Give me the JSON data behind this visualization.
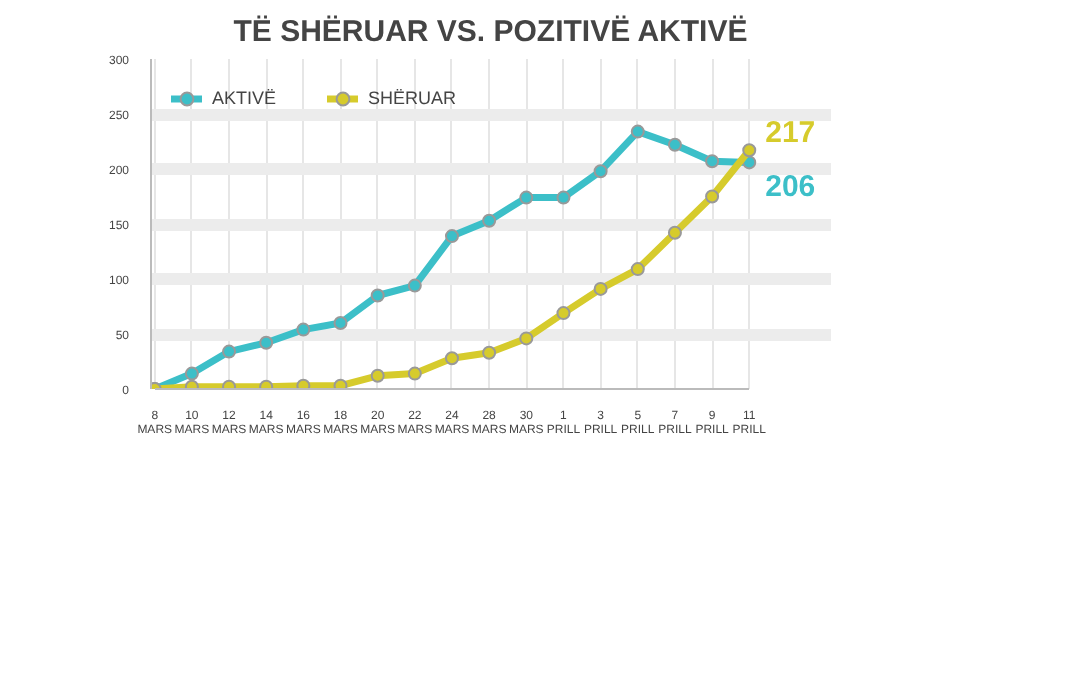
{
  "chart_data": {
    "type": "line",
    "title": "TË SHËRUAR VS. POZITIVË AKTIVË",
    "categories": [
      "8\nMARS",
      "10\nMARS",
      "12\nMARS",
      "14\nMARS",
      "16\nMARS",
      "18\nMARS",
      "20\nMARS",
      "22\nMARS",
      "24\nMARS",
      "28\nMARS",
      "30\nMARS",
      "1\nPRILL",
      "3\nPRILL",
      "5\nPRILL",
      "7\nPRILL",
      "9\nPRILL",
      "11\nPRILL"
    ],
    "series": [
      {
        "name": "AKTIVË",
        "color": "#3cbfc8",
        "values": [
          0,
          14,
          34,
          42,
          54,
          60,
          85,
          94,
          139,
          153,
          174,
          174,
          198,
          234,
          222,
          207,
          206
        ]
      },
      {
        "name": "SHËRUAR",
        "color": "#d6cb2c",
        "values": [
          0,
          2,
          2,
          2,
          3,
          3,
          12,
          14,
          28,
          33,
          46,
          69,
          91,
          109,
          142,
          175,
          217
        ]
      }
    ],
    "ylim": [
      0,
      300
    ],
    "yticks": [
      0,
      50,
      100,
      150,
      200,
      250,
      300
    ],
    "grid": true,
    "legend": "top left",
    "marker": "circle",
    "line_style": "solid",
    "annotations": [
      {
        "text": "217",
        "x": "11\nPRILL",
        "y": 217
      },
      {
        "text": "206",
        "x": "11\nPRILL",
        "y": 206
      }
    ]
  }
}
